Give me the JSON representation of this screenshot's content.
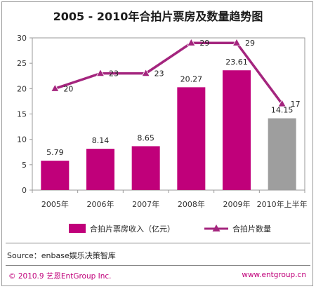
{
  "chart_data": {
    "type": "bar",
    "title": "2005 - 2010年合拍片票房及数量趋势图",
    "categories": [
      "2005年",
      "2006年",
      "2007年",
      "2008年",
      "2009年",
      "2010年上半年"
    ],
    "ylim": [
      0,
      30
    ],
    "yticks": [
      0,
      5,
      10,
      15,
      20,
      25,
      30
    ],
    "grid": false,
    "legend_position": "bottom",
    "series": [
      {
        "name": "合拍片票房收入（亿元）",
        "type": "bar",
        "values": [
          5.79,
          8.14,
          8.65,
          20.27,
          23.61,
          14.15
        ],
        "value_labels": [
          "5.79",
          "8.14",
          "8.65",
          "20.27",
          "23.61",
          "14.15"
        ],
        "color": "#c0007a",
        "last_bar_color": "#9e9e9e"
      },
      {
        "name": "合拍片数量",
        "type": "line",
        "values": [
          20,
          23,
          23,
          29,
          29,
          17
        ],
        "value_labels": [
          "20",
          "23",
          "23",
          "29",
          "29",
          "17"
        ],
        "color": "#a4257e",
        "marker": "triangle"
      }
    ]
  },
  "source": "Source：enbase娱乐决策智库",
  "footer": {
    "copyright": "© 2010.9  艺恩EntGroup Inc.",
    "website": "www.entgroup.cn"
  }
}
